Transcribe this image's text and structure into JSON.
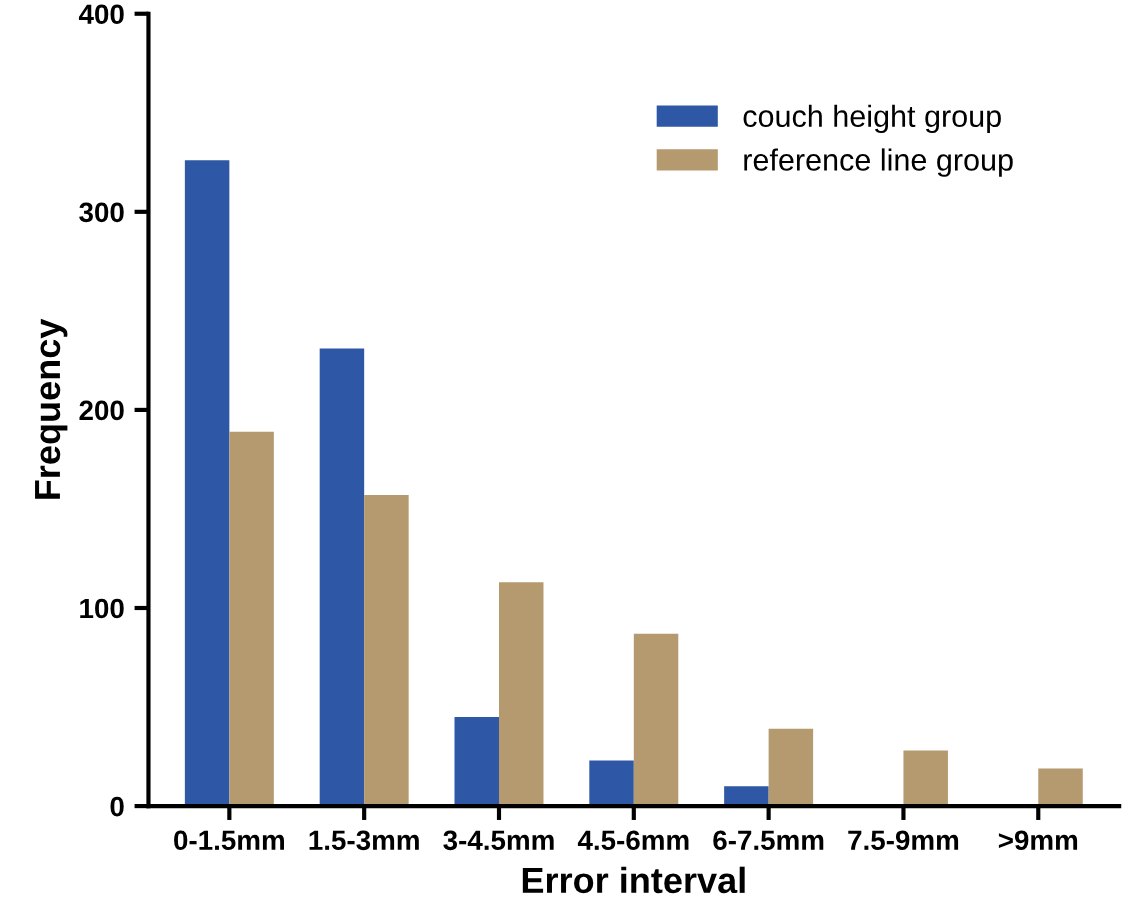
{
  "chart_data": {
    "type": "bar",
    "xlabel": "Error interval",
    "ylabel": "Frequency",
    "categories": [
      "0-1.5mm",
      "1.5-3mm",
      "3-4.5mm",
      "4.5-6mm",
      "6-7.5mm",
      "7.5-9mm",
      ">9mm"
    ],
    "series": [
      {
        "name": "couch height group",
        "color": "#2e57a5",
        "values": [
          326,
          231,
          45,
          23,
          10,
          0,
          0
        ]
      },
      {
        "name": "reference line group",
        "color": "#b49a6e",
        "values": [
          189,
          157,
          113,
          87,
          39,
          28,
          19
        ]
      }
    ],
    "ylim": [
      0,
      400
    ],
    "yticks": [
      0,
      100,
      200,
      300,
      400
    ],
    "grid": false,
    "legend": "top right"
  }
}
